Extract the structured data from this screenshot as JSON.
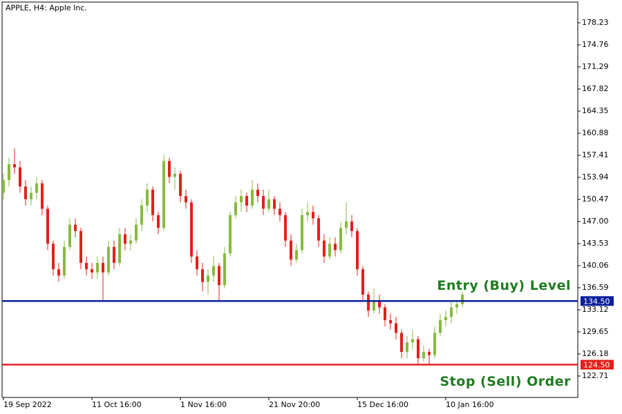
{
  "chart_data": {
    "type": "candlestick",
    "title": "APPLE, H4:  Apple Inc.",
    "categories": [
      "19 Sep 2022",
      null,
      null,
      null,
      null,
      null,
      null,
      null,
      null,
      null,
      null,
      null,
      null,
      null,
      null,
      null,
      "11 Oct 16:00",
      null,
      null,
      null,
      null,
      null,
      null,
      null,
      null,
      null,
      null,
      null,
      null,
      null,
      null,
      null,
      "1 Nov 16:00",
      null,
      null,
      null,
      null,
      null,
      null,
      null,
      null,
      null,
      null,
      null,
      null,
      null,
      null,
      null,
      "21 Nov 20:00",
      null,
      null,
      null,
      null,
      null,
      null,
      null,
      null,
      null,
      null,
      null,
      null,
      null,
      null,
      null,
      "15 Dec 16:00",
      null,
      null,
      null,
      null,
      null,
      null,
      null,
      null,
      null,
      null,
      null,
      null,
      null,
      null,
      null,
      "10 Jan 16:00",
      null,
      null,
      null
    ],
    "open": [
      151.5,
      153.5,
      156,
      155.5,
      152.5,
      150.5,
      151.5,
      153,
      149,
      143.5,
      139.5,
      138.5,
      143,
      146.5,
      145.5,
      140.5,
      139.5,
      139,
      140.5,
      139,
      143,
      140.5,
      145,
      143.5,
      144,
      146.5,
      149.5,
      152,
      148,
      146,
      156.5,
      154,
      154.5,
      151,
      150,
      141.5,
      139.5,
      137.5,
      138.5,
      140,
      137,
      142,
      148,
      150,
      151,
      149.5,
      152,
      151,
      149,
      150.5,
      149,
      148,
      144,
      141,
      142.5,
      148,
      148.5,
      147.5,
      144,
      141.5,
      143.5,
      142.5,
      146,
      147,
      145.5,
      139.5,
      135.5,
      133,
      134.5,
      133.5,
      131.5,
      131,
      129.5,
      126.5,
      128,
      128.5,
      125.5,
      126.5,
      126,
      129.5,
      131.5,
      132,
      133.5,
      134
    ],
    "high": [
      154.5,
      157,
      158.5,
      156.5,
      153.5,
      152.5,
      154,
      153.5,
      149.5,
      144,
      140.5,
      144,
      147.5,
      147.5,
      146,
      141.5,
      140.5,
      141.5,
      141.5,
      144,
      144,
      146,
      146,
      145,
      147.5,
      150.5,
      153,
      152.5,
      148.5,
      157.5,
      157,
      155.5,
      155,
      152,
      150.5,
      142.5,
      140.5,
      139.5,
      141.5,
      140.5,
      143,
      148.5,
      151,
      152,
      151.5,
      153.5,
      153,
      152,
      152,
      151,
      150,
      148.5,
      145,
      143.5,
      149,
      150,
      149.5,
      148,
      145,
      144.5,
      144.5,
      147,
      150,
      148,
      146,
      140,
      136,
      136.5,
      135.5,
      134,
      132.5,
      132,
      130,
      129,
      130,
      129,
      127.5,
      127,
      130.5,
      132.5,
      133,
      134.5,
      134.5,
      136
    ],
    "low": [
      150.5,
      152.5,
      154.5,
      151.5,
      149.5,
      149.5,
      150.5,
      148,
      142.5,
      138.5,
      137.5,
      138,
      142.5,
      144.5,
      139.5,
      138.5,
      138,
      138,
      134.5,
      138.5,
      139.5,
      140,
      142.5,
      142.5,
      143.5,
      145.5,
      148.5,
      147,
      145,
      145.5,
      153,
      152,
      150,
      149,
      140.5,
      138.5,
      136,
      135.5,
      137.5,
      134.5,
      136.5,
      141.5,
      147.5,
      148.5,
      148.5,
      149,
      150,
      148,
      148.5,
      148,
      147,
      143,
      140,
      140.5,
      142,
      147,
      146.5,
      143,
      140.5,
      141,
      141.5,
      142,
      145,
      144.5,
      138.5,
      134.5,
      132,
      132.5,
      132.5,
      130.5,
      130,
      128.5,
      125.5,
      125.5,
      127,
      124.5,
      125,
      124.5,
      125.5,
      129,
      130.5,
      131,
      132.5,
      133.5
    ],
    "close": [
      153.5,
      156,
      155.5,
      152.5,
      150.5,
      151.5,
      153,
      149,
      143.5,
      139.5,
      138.5,
      143,
      146.5,
      145.5,
      140.5,
      139.5,
      139,
      140.5,
      139,
      143,
      140.5,
      145,
      143.5,
      144,
      146.5,
      149.5,
      152,
      148,
      146,
      156.5,
      154,
      154.5,
      151,
      150,
      141.5,
      139.5,
      137.5,
      138.5,
      140,
      137,
      142,
      148,
      150,
      151,
      149.5,
      152,
      151,
      149,
      150.5,
      149,
      148,
      144,
      141,
      142.5,
      148,
      148.5,
      147.5,
      144,
      141.5,
      143.5,
      142.5,
      146,
      147,
      145.5,
      139.5,
      135.5,
      133,
      134.5,
      133.5,
      131.5,
      131,
      129.5,
      126.5,
      128,
      128.5,
      125.5,
      126.5,
      126,
      129.5,
      131.5,
      132,
      133.5,
      134,
      135.5
    ],
    "up_color": "#86bb3e",
    "down_color": "#e3201b",
    "ylim": [
      119.35,
      181.48
    ],
    "yticks": [
      122.71,
      126.18,
      129.65,
      133.12,
      136.59,
      140.06,
      143.53,
      {
        "value": 147,
        "label": "147.00"
      },
      150.47,
      153.94,
      157.41,
      160.88,
      164.35,
      167.82,
      171.29,
      174.76,
      178.23
    ],
    "levels": [
      {
        "value": 134.5,
        "label": "134.50",
        "color": "#0a1e9c",
        "annotation": "Entry (Buy) Level"
      },
      {
        "value": 124.5,
        "label": "124.50",
        "color": "#e3201b",
        "annotation": "Stop (Sell) Order"
      }
    ]
  }
}
